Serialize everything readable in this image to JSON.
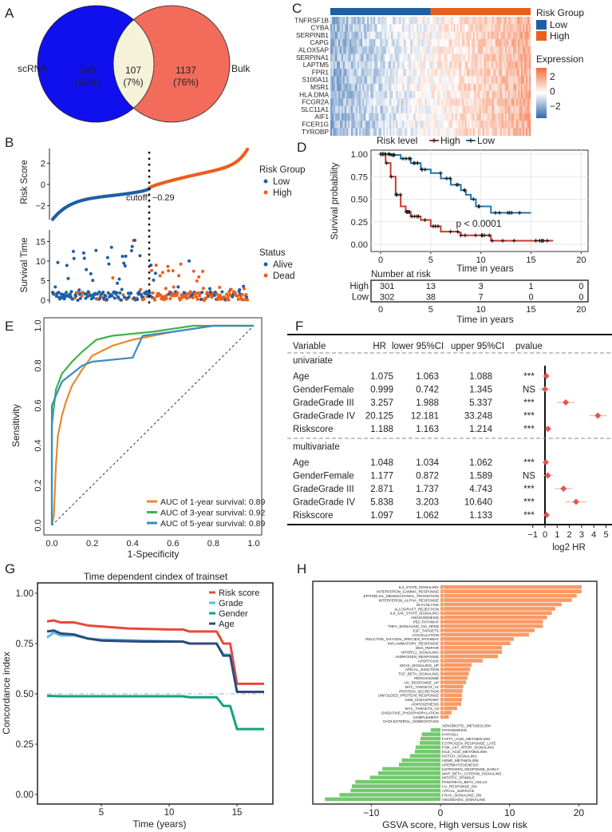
{
  "panels": {
    "a": "A",
    "b": "B",
    "c": "C",
    "d": "D",
    "e": "E",
    "f": "F",
    "g": "G",
    "h": "H"
  },
  "chart_data": [
    {
      "panel": "A",
      "type": "venn",
      "sets": [
        {
          "name": "scRNA",
          "only": "245",
          "pct": "(16%)",
          "color": "#1010ee"
        },
        {
          "name": "Bulk",
          "only": "1137",
          "pct": "(76%)",
          "color": "#f26b5b"
        }
      ],
      "overlap": {
        "count": "107",
        "pct": "(7%)",
        "color": "#f4f2d9"
      }
    },
    {
      "panel": "B",
      "type": "scatter",
      "top": {
        "ylabel": "Risk Score",
        "yticks": [
          "2",
          "0",
          "-2"
        ],
        "ylim": [
          -3.3,
          3.4
        ],
        "cutoff_label": "cutoff: −0.29",
        "cutoff": -0.29,
        "n_low": 302,
        "n_high": 301
      },
      "bottom": {
        "ylabel": "Survival Time",
        "yticks": [
          "15",
          "10",
          "5",
          "0"
        ],
        "ylim": [
          0,
          17.5
        ]
      },
      "legend_risk": {
        "title": "Risk Group",
        "items": [
          {
            "name": "Low",
            "color": "#1f5fa6"
          },
          {
            "name": "High",
            "color": "#ea5f1c"
          }
        ]
      },
      "legend_status": {
        "title": "Status",
        "items": [
          {
            "name": "Alive",
            "color": "#1f5fa6"
          },
          {
            "name": "Dead",
            "color": "#ea5f1c"
          }
        ]
      }
    },
    {
      "panel": "C",
      "type": "heatmap",
      "genes": [
        "TNFRSF1B",
        "CYBA",
        "SERPINB1",
        "CAPG",
        "ALOX5AP",
        "SERPINA1",
        "LAPTM5",
        "FPR1",
        "S100A11",
        "MSR1",
        "HLA.DMA",
        "FCGR2A",
        "SLC11A1",
        "AIF1",
        "FCER1G",
        "TYROBP"
      ],
      "legend_group": {
        "title": "Risk Group",
        "items": [
          {
            "name": "Low",
            "color": "#1f5fa6"
          },
          {
            "name": "High",
            "color": "#ea5f1c"
          }
        ]
      },
      "legend_expr": {
        "title": "Expression",
        "ticks": [
          "2",
          "0",
          "−2"
        ],
        "colors": [
          "#f26b3a",
          "#ffffff",
          "#2f69ad"
        ]
      }
    },
    {
      "panel": "D",
      "type": "line",
      "legend_title": "Risk level",
      "series": [
        {
          "name": "High",
          "color": "#cc3a2e",
          "points": [
            [
              0,
              1
            ],
            [
              0.5,
              0.9
            ],
            [
              1,
              0.75
            ],
            [
              1.5,
              0.55
            ],
            [
              2,
              0.42
            ],
            [
              2.5,
              0.36
            ],
            [
              3,
              0.31
            ],
            [
              4,
              0.27
            ],
            [
              5,
              0.2
            ],
            [
              6,
              0.14
            ],
            [
              7.8,
              0.13
            ],
            [
              8,
              0.1
            ],
            [
              10.8,
              0.1
            ],
            [
              11,
              0.04
            ],
            [
              17.2,
              0.04
            ]
          ]
        },
        {
          "name": "Low",
          "color": "#1f78b4",
          "points": [
            [
              0,
              1
            ],
            [
              1,
              0.99
            ],
            [
              2,
              0.95
            ],
            [
              3,
              0.9
            ],
            [
              4,
              0.83
            ],
            [
              5,
              0.79
            ],
            [
              6,
              0.73
            ],
            [
              7,
              0.66
            ],
            [
              8,
              0.6
            ],
            [
              8.5,
              0.55
            ],
            [
              9,
              0.5
            ],
            [
              9.5,
              0.42
            ],
            [
              10.8,
              0.42
            ],
            [
              11,
              0.35
            ],
            [
              15,
              0.35
            ]
          ]
        }
      ],
      "ylabel": "Survival probability",
      "xlabel": "Time in years",
      "yticks": [
        "1.00",
        "0.75",
        "0.50",
        "0.25",
        "0.00"
      ],
      "xticks": [
        "0",
        "5",
        "10",
        "15",
        "20"
      ],
      "xlim": [
        0,
        20
      ],
      "ylim": [
        0,
        1
      ],
      "pvalue": "p < 0.0001",
      "risk_table": {
        "title": "Number at risk",
        "rows": [
          {
            "name": "High",
            "color": "#e8242a",
            "values": [
              "301",
              "13",
              "3",
              "1",
              "0"
            ]
          },
          {
            "name": "Low",
            "color": "#2432e8",
            "values": [
              "302",
              "38",
              "7",
              "0",
              "0"
            ]
          }
        ]
      }
    },
    {
      "panel": "E",
      "type": "line",
      "xlabel": "1-Specificity",
      "ylabel": "Sensitivity",
      "xticks": [
        "0.0",
        "0.2",
        "0.4",
        "0.6",
        "0.8",
        "1.0"
      ],
      "yticks": [
        "0.0",
        "0.2",
        "0.4",
        "0.6",
        "0.8",
        "1.0"
      ],
      "xlim": [
        0,
        1
      ],
      "ylim": [
        0,
        1
      ],
      "series": [
        {
          "name": "AUC of 1-year survival: 0.89",
          "color": "#e8892b",
          "points": [
            [
              0,
              0
            ],
            [
              0.01,
              0.05
            ],
            [
              0.02,
              0.3
            ],
            [
              0.03,
              0.45
            ],
            [
              0.05,
              0.55
            ],
            [
              0.07,
              0.62
            ],
            [
              0.1,
              0.7
            ],
            [
              0.15,
              0.78
            ],
            [
              0.2,
              0.85
            ],
            [
              0.3,
              0.9
            ],
            [
              0.4,
              0.93
            ],
            [
              0.6,
              0.97
            ],
            [
              0.8,
              1
            ],
            [
              1,
              1
            ]
          ]
        },
        {
          "name": "AUC of 3-year survival: 0.92",
          "color": "#3db44a",
          "points": [
            [
              0,
              0
            ],
            [
              0,
              0.5
            ],
            [
              0.02,
              0.68
            ],
            [
              0.05,
              0.76
            ],
            [
              0.1,
              0.82
            ],
            [
              0.15,
              0.87
            ],
            [
              0.22,
              0.93
            ],
            [
              0.3,
              0.95
            ],
            [
              0.5,
              0.97
            ],
            [
              0.7,
              1
            ],
            [
              1,
              1
            ]
          ]
        },
        {
          "name": "AUC of 5-year survival: 0.89",
          "color": "#3a8cc6",
          "points": [
            [
              0,
              0
            ],
            [
              0,
              0.6
            ],
            [
              0.02,
              0.65
            ],
            [
              0.05,
              0.72
            ],
            [
              0.1,
              0.76
            ],
            [
              0.15,
              0.8
            ],
            [
              0.2,
              0.82
            ],
            [
              0.4,
              0.84
            ],
            [
              0.45,
              0.95
            ],
            [
              0.6,
              0.97
            ],
            [
              0.8,
              1
            ],
            [
              1,
              1
            ]
          ]
        }
      ]
    },
    {
      "panel": "F",
      "type": "table",
      "headers": [
        "Variable",
        "HR",
        "lower 95%CI",
        "upper 95%CI",
        "pvalue"
      ],
      "groups": [
        {
          "name": "univariate",
          "rows": [
            [
              "Age",
              "1.075",
              "1.063",
              "1.088",
              "***"
            ],
            [
              "GenderFemale",
              "0.999",
              "0.742",
              "1.345",
              "NS"
            ],
            [
              "GradeGrade III",
              "3.257",
              "1.988",
              "5.337",
              "***"
            ],
            [
              "GradeGrade IV",
              "20.125",
              "12.181",
              "33.248",
              "***"
            ],
            [
              "Riskscore",
              "1.188",
              "1.163",
              "1.214",
              "***"
            ]
          ]
        },
        {
          "name": "multivariate",
          "rows": [
            [
              "Age",
              "1.048",
              "1.034",
              "1.062",
              "***"
            ],
            [
              "GenderFemale",
              "1.177",
              "0.872",
              "1.589",
              "NS"
            ],
            [
              "GradeGrade III",
              "2.871",
              "1.737",
              "4.743",
              "***"
            ],
            [
              "GradeGrade IV",
              "5.838",
              "3.203",
              "10.640",
              "***"
            ],
            [
              "Riskscore",
              "1.097",
              "1.062",
              "1.133",
              "***"
            ]
          ]
        }
      ],
      "xlabel": "log2 HR",
      "xticks": [
        "−1",
        "0",
        "1",
        "2",
        "3",
        "4",
        "5"
      ],
      "xlim": [
        -1,
        5
      ],
      "point_color": "#e8534a"
    },
    {
      "panel": "G",
      "type": "line",
      "title": "Time dependent cindex of trainset",
      "xlabel": "Time (years)",
      "ylabel": "Concordance index",
      "xticks": [
        "5",
        "10",
        "15"
      ],
      "yticks": [
        "1.00",
        "0.75",
        "0.50",
        "0.25",
        "0.00"
      ],
      "ylim": [
        0,
        1
      ],
      "xlim": [
        0.3,
        17.4
      ],
      "reference": 0.5,
      "series": [
        {
          "name": "Risk score",
          "color": "#e8493a",
          "points": [
            [
              1,
              0.86
            ],
            [
              1.5,
              0.865
            ],
            [
              2,
              0.855
            ],
            [
              3,
              0.855
            ],
            [
              4,
              0.84
            ],
            [
              5,
              0.835
            ],
            [
              7,
              0.825
            ],
            [
              10,
              0.82
            ],
            [
              11,
              0.82
            ],
            [
              11.5,
              0.81
            ],
            [
              13.5,
              0.81
            ],
            [
              14,
              0.75
            ],
            [
              14.5,
              0.75
            ],
            [
              15,
              0.55
            ],
            [
              17,
              0.55
            ]
          ]
        },
        {
          "name": "Grade",
          "color": "#5bc0de",
          "points": [
            [
              1,
              0.78
            ],
            [
              1.5,
              0.805
            ],
            [
              2,
              0.79
            ],
            [
              3,
              0.79
            ],
            [
              4,
              0.775
            ],
            [
              5,
              0.77
            ],
            [
              8,
              0.765
            ],
            [
              11,
              0.76
            ],
            [
              11.5,
              0.75
            ],
            [
              13.5,
              0.75
            ],
            [
              14,
              0.695
            ],
            [
              14.5,
              0.695
            ],
            [
              15,
              0.51
            ],
            [
              17,
              0.51
            ]
          ]
        },
        {
          "name": "Gender",
          "color": "#12a37f",
          "points": [
            [
              1,
              0.49
            ],
            [
              2,
              0.488
            ],
            [
              5,
              0.488
            ],
            [
              11,
              0.488
            ],
            [
              11.5,
              0.483
            ],
            [
              13.5,
              0.483
            ],
            [
              14,
              0.44
            ],
            [
              14.5,
              0.44
            ],
            [
              15,
              0.325
            ],
            [
              17,
              0.325
            ]
          ]
        },
        {
          "name": "Age",
          "color": "#2e4a7e",
          "points": [
            [
              1,
              0.81
            ],
            [
              1.5,
              0.815
            ],
            [
              2,
              0.8
            ],
            [
              3,
              0.795
            ],
            [
              4,
              0.775
            ],
            [
              5,
              0.765
            ],
            [
              8,
              0.76
            ],
            [
              11,
              0.76
            ],
            [
              11.5,
              0.75
            ],
            [
              13.5,
              0.75
            ],
            [
              14,
              0.69
            ],
            [
              14.5,
              0.69
            ],
            [
              15,
              0.51
            ],
            [
              17,
              0.51
            ]
          ]
        }
      ]
    },
    {
      "panel": "H",
      "type": "bar",
      "xlabel": "GSVA score, High versus Low risk",
      "xticks": [
        "−10",
        "0",
        "10",
        "20"
      ],
      "xlim": [
        -18.5,
        23
      ],
      "colors": {
        "up": "#f79a64",
        "down": "#74c96f",
        "neutral_label": "#c8c8c8"
      },
      "categories": [
        "IL2_STAT5_SIGNALING",
        "INTERFERON_GAMMA_RESPONSE",
        "EPITHELIAL_MESENCHYMAL_TRANSITION",
        "INTERFERON_ALPHA_RESPONSE",
        "GLYCOLYSIS",
        "ALLOGRAFT_REJECTION",
        "IL6_JAK_STAT3_SIGNALING",
        "ANGIOGENESIS",
        "P53_PATHWAY",
        "TNFA_SIGNALING_VIA_NFKB",
        "E2F_TARGETS",
        "COAGULATION",
        "REACTIVE_OXYGEN_SPECIES_PATHWAY",
        "INFLAMMATORY_RESPONSE",
        "DNA_REPAIR",
        "MTORC1_SIGNALING",
        "ANDROGEN_RESPONSE",
        "APOPTOSIS",
        "KRAS_SIGNALING_UP",
        "APICAL_JUNCTION",
        "TGF_BETA_SIGNALING",
        "PEROXISOME",
        "UV_RESPONSE_UP",
        "MYC_TARGETS_V1",
        "PROTEIN_SECRETION",
        "UNFOLDED_PROTEIN_RESPONSE",
        "G2M_CHECKPOINT",
        "ADIPOGENESIS",
        "MYC_TARGETS_V2",
        "OXIDATIVE_PHOSPHORYLATION",
        "COMPLEMENT",
        "CHOLESTEROL_HOMEOSTASIS",
        "XENOBIOTIC_METABOLISM",
        "MYOGENESIS",
        "HYPOXIA",
        "FATTY_ACID_METABOLISM",
        "ESTROGEN_RESPONSE_LATE",
        "PI3K_AKT_MTOR_SIGNALING",
        "BILE_ACID_METABOLISM",
        "NOTCH_SIGNALING",
        "HEME_METABOLISM",
        "SPERMATOGENESIS",
        "ESTROGEN_RESPONSE_EARLY",
        "WNT_BETA_CATENIN_SIGNALING",
        "MITOTIC_SPINDLE",
        "PANCREAS_BETA_CELLS",
        "UV_RESPONSE_DN",
        "APICAL_SURFACE",
        "KRAS_SIGNALING_DN",
        "HEDGEHOG_SIGNALING"
      ],
      "values": [
        20.4,
        20.4,
        19.7,
        19.0,
        17.5,
        16.6,
        16.1,
        15.4,
        14.8,
        14.8,
        13.6,
        12.8,
        10.6,
        10.1,
        8.9,
        8.9,
        8.3,
        6.1,
        4.5,
        4.3,
        4.1,
        3.9,
        3.7,
        3.3,
        3.2,
        3.1,
        3.1,
        3.0,
        2.4,
        1.6,
        1.2,
        0.2,
        -0.2,
        -1.4,
        -2.7,
        -2.9,
        -3.0,
        -3.6,
        -3.7,
        -4.4,
        -5.6,
        -6.0,
        -8.4,
        -9.0,
        -10.2,
        -12.3,
        -12.8,
        -13.0,
        -14.6,
        -16.7
      ]
    }
  ]
}
